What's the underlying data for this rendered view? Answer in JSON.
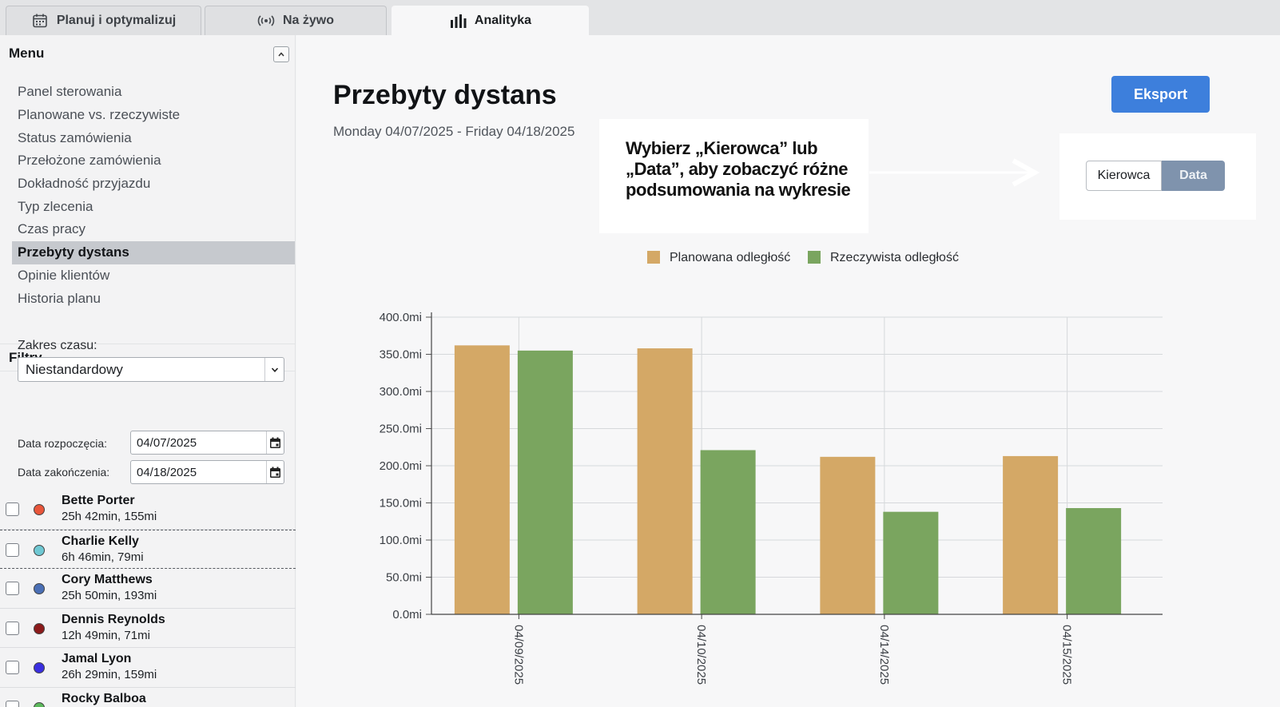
{
  "tabs": [
    {
      "label": "Planuj i optymalizuj",
      "icon": "calendar-icon",
      "active": false
    },
    {
      "label": "Na żywo",
      "icon": "broadcast-icon",
      "active": false
    },
    {
      "label": "Analityka",
      "icon": "bar-chart-icon",
      "active": true
    }
  ],
  "sidebar": {
    "menu_title": "Menu",
    "menu_items": [
      {
        "label": "Panel sterowania",
        "active": false
      },
      {
        "label": "Planowane vs. rzeczywiste",
        "active": false
      },
      {
        "label": "Status zamówienia",
        "active": false
      },
      {
        "label": "Przełożone zamówienia",
        "active": false
      },
      {
        "label": "Dokładność przyjazdu",
        "active": false
      },
      {
        "label": "Typ zlecenia",
        "active": false
      },
      {
        "label": "Czas pracy",
        "active": false
      },
      {
        "label": "Przebyty dystans",
        "active": true
      },
      {
        "label": "Opinie klientów",
        "active": false
      },
      {
        "label": "Historia planu",
        "active": false
      }
    ],
    "filters_title": "Filtry",
    "time_range_label": "Zakres czasu:",
    "time_range_value": "Niestandardowy",
    "start_label": "Data rozpoczęcia:",
    "start_value": "04/07/2025",
    "end_label": "Data zakończenia:",
    "end_value": "04/18/2025",
    "drivers": [
      {
        "name": "Bette Porter",
        "meta": "25h 42min, 155mi",
        "color": "#e8553a"
      },
      {
        "name": "Charlie Kelly",
        "meta": "6h 46min, 79mi",
        "color": "#6fc8d3"
      },
      {
        "name": "Cory Matthews",
        "meta": "25h 50min, 193mi",
        "color": "#4a6fb5"
      },
      {
        "name": "Dennis Reynolds",
        "meta": "12h 49min, 71mi",
        "color": "#8b1a1a"
      },
      {
        "name": "Jamal Lyon",
        "meta": "26h 29min, 159mi",
        "color": "#3a2fe0"
      },
      {
        "name": "Rocky Balboa",
        "meta": "",
        "color": "#5cb85c"
      }
    ]
  },
  "main": {
    "title": "Przebyty dystans",
    "date_range": "Monday 04/07/2025 - Friday 04/18/2025",
    "export_label": "Eksport",
    "callout_text": "Wybierz „Kierowca” lub „Data”, aby zobaczyć różne podsumowania na wykresie",
    "toggle": {
      "options": [
        "Kierowca",
        "Data"
      ],
      "selected": "Data"
    }
  },
  "chart_data": {
    "type": "bar",
    "categories": [
      "04/09/2025",
      "04/10/2025",
      "04/14/2025",
      "04/15/2025"
    ],
    "series": [
      {
        "name": "Planowana odległość",
        "color": "#d4a866",
        "values": [
          362,
          358,
          212,
          213
        ]
      },
      {
        "name": "Rzeczywista odległość",
        "color": "#7aa55f",
        "values": [
          355,
          221,
          138,
          143
        ]
      }
    ],
    "y_ticks": [
      "0.0mi",
      "50.0mi",
      "100.0mi",
      "150.0mi",
      "200.0mi",
      "250.0mi",
      "300.0mi",
      "350.0mi",
      "400.0mi"
    ],
    "ylim": [
      0,
      400
    ],
    "grid": true,
    "legend_position": "top-center"
  }
}
